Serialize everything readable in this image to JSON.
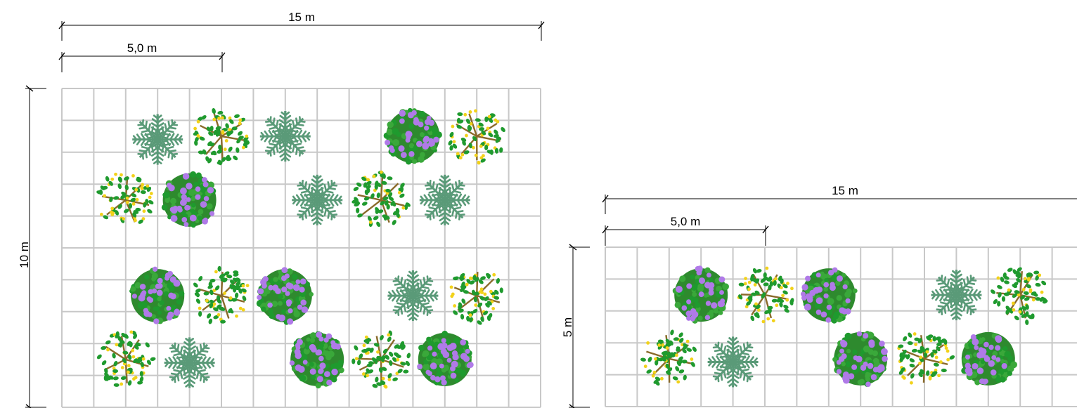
{
  "plans": [
    {
      "id": "plan-a",
      "dims": {
        "width_label": "15 m",
        "module_label": "5,0 m",
        "height_label": "10 m"
      },
      "grid": {
        "cols": 15,
        "rows": 10
      },
      "plants": [
        {
          "type": "palm",
          "col": 3,
          "row": 1.6
        },
        {
          "type": "ipe",
          "col": 5,
          "row": 1.5
        },
        {
          "type": "palm",
          "col": 7,
          "row": 1.5
        },
        {
          "type": "jacaranda",
          "col": 11,
          "row": 1.5
        },
        {
          "type": "ipe",
          "col": 13,
          "row": 1.5
        },
        {
          "type": "ipe",
          "col": 2,
          "row": 3.5
        },
        {
          "type": "jacaranda",
          "col": 4,
          "row": 3.5
        },
        {
          "type": "palm",
          "col": 8,
          "row": 3.5
        },
        {
          "type": "ipe",
          "col": 10,
          "row": 3.5
        },
        {
          "type": "palm",
          "col": 12,
          "row": 3.5
        },
        {
          "type": "jacaranda",
          "col": 3,
          "row": 6.5
        },
        {
          "type": "ipe",
          "col": 5,
          "row": 6.5
        },
        {
          "type": "jacaranda",
          "col": 7,
          "row": 6.5
        },
        {
          "type": "palm",
          "col": 11,
          "row": 6.5
        },
        {
          "type": "ipe",
          "col": 13,
          "row": 6.5
        },
        {
          "type": "ipe",
          "col": 2,
          "row": 8.5
        },
        {
          "type": "palm",
          "col": 4,
          "row": 8.6
        },
        {
          "type": "jacaranda",
          "col": 8,
          "row": 8.5
        },
        {
          "type": "ipe",
          "col": 10,
          "row": 8.5
        },
        {
          "type": "jacaranda",
          "col": 12,
          "row": 8.5
        }
      ]
    },
    {
      "id": "plan-b",
      "dims": {
        "width_label": "15 m",
        "module_label": "5,0 m",
        "height_label": "5 m"
      },
      "grid": {
        "cols": 15,
        "rows": 5
      },
      "plants": [
        {
          "type": "jacaranda",
          "col": 3,
          "row": 1.5
        },
        {
          "type": "ipe",
          "col": 5,
          "row": 1.5
        },
        {
          "type": "jacaranda",
          "col": 7,
          "row": 1.5
        },
        {
          "type": "palm",
          "col": 11,
          "row": 1.5
        },
        {
          "type": "ipe",
          "col": 13,
          "row": 1.5
        },
        {
          "type": "ipe",
          "col": 2,
          "row": 3.5
        },
        {
          "type": "palm",
          "col": 4,
          "row": 3.6
        },
        {
          "type": "jacaranda",
          "col": 8,
          "row": 3.5
        },
        {
          "type": "ipe",
          "col": 10,
          "row": 3.5
        },
        {
          "type": "jacaranda",
          "col": 12,
          "row": 3.5
        }
      ]
    }
  ],
  "colors": {
    "grid": "#c8c8c8",
    "dimension": "#000000",
    "palm": "#5a9a78",
    "ipe_leaf": "#1f9a2e",
    "ipe_flower": "#f2d21a",
    "ipe_branch": "#8a6a2a",
    "jacaranda_leaf": "#1f9a2e",
    "jacaranda_flower": "#b07ae8"
  }
}
